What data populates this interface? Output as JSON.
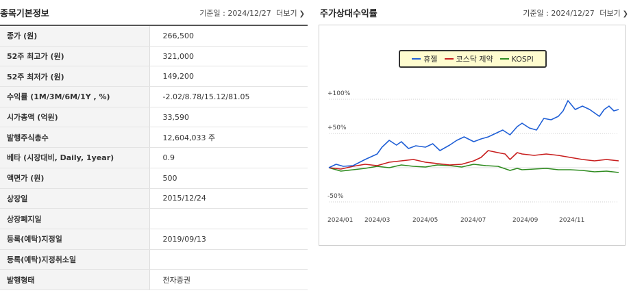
{
  "basic_info": {
    "title": "종목기본정보",
    "ref_label": "기준일",
    "ref_date": "2024/12/27",
    "more_label": "더보기",
    "rows": [
      {
        "label": "종가 (원)",
        "value": "266,500"
      },
      {
        "label": "52주 최고가 (원)",
        "value": "321,000"
      },
      {
        "label": "52주 최저가 (원)",
        "value": "149,200"
      },
      {
        "label": "수익률 (1M/3M/6M/1Y , %)",
        "value": "-2.02/8.78/15.12/81.05"
      },
      {
        "label": "시가총액 (억원)",
        "value": "33,590"
      },
      {
        "label": "발행주식총수",
        "value": "12,604,033 주"
      },
      {
        "label": "베타 (시장대비, Daily, 1year)",
        "value": "0.9"
      },
      {
        "label": "액면가 (원)",
        "value": "500"
      },
      {
        "label": "상장일",
        "value": "2015/12/24"
      },
      {
        "label": "상장폐지일",
        "value": ""
      },
      {
        "label": "등록(예탁)지정일",
        "value": "2019/09/13"
      },
      {
        "label": "등록(예탁)지정취소일",
        "value": ""
      },
      {
        "label": "발행형태",
        "value": "전자증권"
      }
    ]
  },
  "relative_return": {
    "title": "주가상대수익률",
    "ref_label": "기준일",
    "ref_date": "2024/12/27",
    "more_label": "더보기"
  },
  "chart_data": {
    "type": "line",
    "title": "",
    "xlabel": "",
    "ylabel": "",
    "y_unit": "%",
    "ylim": [
      -50,
      100
    ],
    "y_ticks": [
      {
        "value": 100,
        "label": "+100%"
      },
      {
        "value": 50,
        "label": "+50%"
      },
      {
        "value": -50,
        "label": "-50%"
      }
    ],
    "x_ticks": [
      "2024/01",
      "2024/03",
      "2024/05",
      "2024/07",
      "2024/09",
      "2024/11"
    ],
    "x_range": [
      0,
      12
    ],
    "legend_position": "top-center",
    "series": [
      {
        "name": "휴젤",
        "color": "#1f5fd6",
        "x": [
          0,
          0.3,
          0.6,
          1.0,
          1.5,
          2.0,
          2.2,
          2.5,
          2.8,
          3.0,
          3.3,
          3.6,
          4.0,
          4.3,
          4.6,
          5.0,
          5.3,
          5.6,
          6.0,
          6.3,
          6.6,
          6.9,
          7.2,
          7.5,
          7.8,
          8.0,
          8.3,
          8.6,
          8.9,
          9.2,
          9.5,
          9.7,
          9.9,
          10.2,
          10.5,
          10.8,
          11.0,
          11.2,
          11.4,
          11.6,
          11.8,
          12.0
        ],
        "y": [
          0,
          5,
          2,
          3,
          12,
          20,
          30,
          40,
          33,
          38,
          28,
          32,
          30,
          35,
          25,
          33,
          40,
          45,
          38,
          42,
          45,
          50,
          55,
          48,
          60,
          65,
          58,
          55,
          72,
          70,
          75,
          83,
          98,
          85,
          90,
          85,
          80,
          75,
          85,
          90,
          83,
          85
        ]
      },
      {
        "name": "코스닥 제약",
        "color": "#c81e1e",
        "x": [
          0,
          0.5,
          1.0,
          1.5,
          2.0,
          2.5,
          3.0,
          3.5,
          4.0,
          4.5,
          5.0,
          5.5,
          6.0,
          6.3,
          6.6,
          7.0,
          7.3,
          7.5,
          7.8,
          8.0,
          8.5,
          9.0,
          9.5,
          10.0,
          10.5,
          11.0,
          11.5,
          12.0
        ],
        "y": [
          0,
          -2,
          2,
          5,
          3,
          8,
          10,
          12,
          8,
          6,
          4,
          5,
          10,
          15,
          25,
          22,
          20,
          12,
          22,
          20,
          18,
          20,
          18,
          15,
          12,
          10,
          12,
          10
        ]
      },
      {
        "name": "KOSPI",
        "color": "#2e8b1f",
        "x": [
          0,
          0.5,
          1.0,
          1.5,
          2.0,
          2.5,
          3.0,
          3.5,
          4.0,
          4.5,
          5.0,
          5.5,
          6.0,
          6.5,
          7.0,
          7.5,
          7.8,
          8.0,
          8.5,
          9.0,
          9.5,
          10.0,
          10.5,
          11.0,
          11.5,
          12.0
        ],
        "y": [
          0,
          -5,
          -3,
          -1,
          2,
          0,
          4,
          2,
          1,
          4,
          3,
          1,
          5,
          3,
          2,
          -4,
          -1,
          -3,
          -2,
          -1,
          -3,
          -3,
          -4,
          -6,
          -5,
          -7
        ]
      }
    ]
  }
}
